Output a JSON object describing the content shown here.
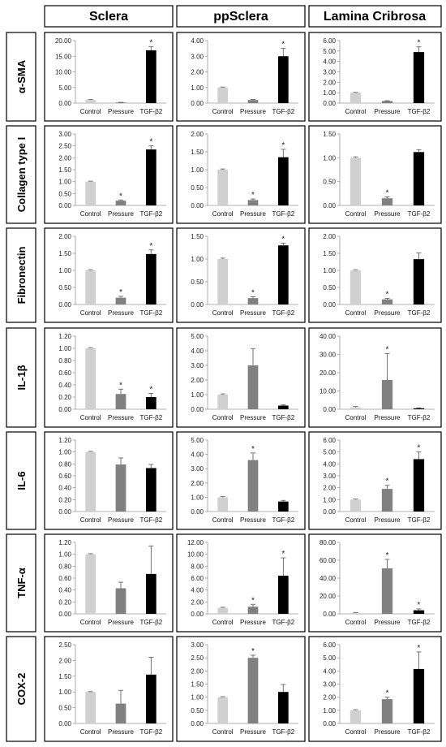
{
  "figure": {
    "columns": [
      "Sclera",
      "ppSclera",
      "Lamina Cribrosa"
    ],
    "rows": [
      "α-SMA",
      "Collagen type I",
      "Fibronectin",
      "IL-1β",
      "IL-6",
      "TNF-α",
      "COX-2"
    ],
    "categories": [
      "Control",
      "Pressure",
      "TGF-β2"
    ],
    "bar_colors": [
      "#d0d0d0",
      "#808080",
      "#000000"
    ],
    "significance_marker": "*"
  },
  "chart_data": [
    {
      "type": "bar",
      "row": "α-SMA",
      "column": "Sclera",
      "categories": [
        "Control",
        "Pressure",
        "TGF-β2"
      ],
      "values": [
        1.0,
        0.2,
        16.9
      ],
      "errors": [
        0.15,
        0.05,
        1.2
      ],
      "significant": [
        false,
        false,
        true
      ],
      "yticks": [
        "0.00",
        "5.00",
        "10.00",
        "15.00",
        "20.00"
      ],
      "ylim": [
        0,
        20
      ]
    },
    {
      "type": "bar",
      "row": "α-SMA",
      "column": "ppSclera",
      "categories": [
        "Control",
        "Pressure",
        "TGF-β2"
      ],
      "values": [
        1.0,
        0.2,
        3.0
      ],
      "errors": [
        0.03,
        0.03,
        0.5
      ],
      "significant": [
        false,
        false,
        true
      ],
      "yticks": [
        "0.00",
        "1.00",
        "2.00",
        "3.00",
        "4.00"
      ],
      "ylim": [
        0,
        4
      ]
    },
    {
      "type": "bar",
      "row": "α-SMA",
      "column": "Lamina Cribrosa",
      "categories": [
        "Control",
        "Pressure",
        "TGF-β2"
      ],
      "values": [
        1.0,
        0.2,
        4.9
      ],
      "errors": [
        0.03,
        0.03,
        0.5
      ],
      "significant": [
        false,
        false,
        true
      ],
      "yticks": [
        "0.00",
        "1.00",
        "2.00",
        "3.00",
        "4.00",
        "5.00",
        "6.00"
      ],
      "ylim": [
        0,
        6
      ]
    },
    {
      "type": "bar",
      "row": "Collagen type I",
      "column": "Sclera",
      "categories": [
        "Control",
        "Pressure",
        "TGF-β2"
      ],
      "values": [
        1.0,
        0.2,
        2.35
      ],
      "errors": [
        0.02,
        0.03,
        0.15
      ],
      "significant": [
        false,
        true,
        true
      ],
      "yticks": [
        "0.00",
        "0.50",
        "1.00",
        "1.50",
        "2.00",
        "2.50",
        "3.00"
      ],
      "ylim": [
        0,
        3
      ]
    },
    {
      "type": "bar",
      "row": "Collagen type I",
      "column": "ppSclera",
      "categories": [
        "Control",
        "Pressure",
        "TGF-β2"
      ],
      "values": [
        1.0,
        0.15,
        1.35
      ],
      "errors": [
        0.02,
        0.03,
        0.22
      ],
      "significant": [
        false,
        true,
        true
      ],
      "yticks": [
        "0.00",
        "0.50",
        "1.00",
        "1.50",
        "2.00"
      ],
      "ylim": [
        0,
        2
      ]
    },
    {
      "type": "bar",
      "row": "Collagen type I",
      "column": "Lamina Cribrosa",
      "categories": [
        "Control",
        "Pressure",
        "TGF-β2"
      ],
      "values": [
        1.0,
        0.15,
        1.12
      ],
      "errors": [
        0.02,
        0.03,
        0.05
      ],
      "significant": [
        false,
        true,
        false
      ],
      "yticks": [
        "0.00",
        "0.50",
        "1.00",
        "1.50"
      ],
      "ylim": [
        0,
        1.5
      ]
    },
    {
      "type": "bar",
      "row": "Fibronectin",
      "column": "Sclera",
      "categories": [
        "Control",
        "Pressure",
        "TGF-β2"
      ],
      "values": [
        1.0,
        0.2,
        1.48
      ],
      "errors": [
        0.02,
        0.04,
        0.12
      ],
      "significant": [
        false,
        true,
        true
      ],
      "yticks": [
        "0.00",
        "0.50",
        "1.00",
        "1.50",
        "2.00"
      ],
      "ylim": [
        0,
        2
      ]
    },
    {
      "type": "bar",
      "row": "Fibronectin",
      "column": "ppSclera",
      "categories": [
        "Control",
        "Pressure",
        "TGF-β2"
      ],
      "values": [
        1.0,
        0.14,
        1.3
      ],
      "errors": [
        0.02,
        0.03,
        0.05
      ],
      "significant": [
        false,
        true,
        true
      ],
      "yticks": [
        "0.00",
        "0.50",
        "1.00",
        "1.50"
      ],
      "ylim": [
        0,
        1.5
      ]
    },
    {
      "type": "bar",
      "row": "Fibronectin",
      "column": "Lamina Cribrosa",
      "categories": [
        "Control",
        "Pressure",
        "TGF-β2"
      ],
      "values": [
        1.0,
        0.15,
        1.33
      ],
      "errors": [
        0.02,
        0.03,
        0.18
      ],
      "significant": [
        false,
        true,
        false
      ],
      "yticks": [
        "0.00",
        "0.50",
        "1.00",
        "1.50",
        "2.00"
      ],
      "ylim": [
        0,
        2
      ]
    },
    {
      "type": "bar",
      "row": "IL-1β",
      "column": "Sclera",
      "categories": [
        "Control",
        "Pressure",
        "TGF-β2"
      ],
      "values": [
        1.0,
        0.25,
        0.2
      ],
      "errors": [
        0.01,
        0.08,
        0.06
      ],
      "significant": [
        false,
        true,
        true
      ],
      "yticks": [
        "0.00",
        "0.20",
        "0.40",
        "0.60",
        "0.80",
        "1.00",
        "1.20"
      ],
      "ylim": [
        0,
        1.2
      ]
    },
    {
      "type": "bar",
      "row": "IL-1β",
      "column": "ppSclera",
      "categories": [
        "Control",
        "Pressure",
        "TGF-β2"
      ],
      "values": [
        1.0,
        3.0,
        0.25
      ],
      "errors": [
        0.05,
        1.15,
        0.05
      ],
      "significant": [
        false,
        false,
        false
      ],
      "yticks": [
        "0.00",
        "1.00",
        "2.00",
        "3.00",
        "4.00",
        "5.00"
      ],
      "ylim": [
        0,
        5
      ]
    },
    {
      "type": "bar",
      "row": "IL-1β",
      "column": "Lamina Cribrosa",
      "categories": [
        "Control",
        "Pressure",
        "TGF-β2"
      ],
      "values": [
        1.0,
        16.0,
        0.5
      ],
      "errors": [
        0.5,
        14.5,
        0.3
      ],
      "significant": [
        false,
        true,
        false
      ],
      "yticks": [
        "0.00",
        "10.00",
        "20.00",
        "30.00",
        "40.00"
      ],
      "ylim": [
        0,
        40
      ]
    },
    {
      "type": "bar",
      "row": "IL-6",
      "column": "Sclera",
      "categories": [
        "Control",
        "Pressure",
        "TGF-β2"
      ],
      "values": [
        1.0,
        0.79,
        0.73
      ],
      "errors": [
        0.01,
        0.11,
        0.06
      ],
      "significant": [
        false,
        false,
        false
      ],
      "yticks": [
        "0.00",
        "0.20",
        "0.40",
        "0.60",
        "0.80",
        "1.00",
        "1.20"
      ],
      "ylim": [
        0,
        1.2
      ]
    },
    {
      "type": "bar",
      "row": "IL-6",
      "column": "ppSclera",
      "categories": [
        "Control",
        "Pressure",
        "TGF-β2"
      ],
      "values": [
        1.0,
        3.6,
        0.7
      ],
      "errors": [
        0.05,
        0.5,
        0.08
      ],
      "significant": [
        false,
        true,
        false
      ],
      "yticks": [
        "0.00",
        "1.00",
        "2.00",
        "3.00",
        "4.00",
        "5.00"
      ],
      "ylim": [
        0,
        5
      ]
    },
    {
      "type": "bar",
      "row": "IL-6",
      "column": "Lamina Cribrosa",
      "categories": [
        "Control",
        "Pressure",
        "TGF-β2"
      ],
      "values": [
        1.0,
        1.9,
        4.4
      ],
      "errors": [
        0.05,
        0.3,
        0.6
      ],
      "significant": [
        false,
        true,
        true
      ],
      "yticks": [
        "0.00",
        "1.00",
        "2.00",
        "3.00",
        "4.00",
        "5.00",
        "6.00"
      ],
      "ylim": [
        0,
        6
      ]
    },
    {
      "type": "bar",
      "row": "TNF-α",
      "column": "Sclera",
      "categories": [
        "Control",
        "Pressure",
        "TGF-β2"
      ],
      "values": [
        1.0,
        0.43,
        0.67
      ],
      "errors": [
        0.01,
        0.1,
        0.47
      ],
      "significant": [
        false,
        false,
        false
      ],
      "yticks": [
        "0.00",
        "0.20",
        "0.40",
        "0.60",
        "0.80",
        "1.00",
        "1.20"
      ],
      "ylim": [
        0,
        1.2
      ]
    },
    {
      "type": "bar",
      "row": "TNF-α",
      "column": "ppSclera",
      "categories": [
        "Control",
        "Pressure",
        "TGF-β2"
      ],
      "values": [
        1.0,
        1.2,
        6.4
      ],
      "errors": [
        0.1,
        0.4,
        3.0
      ],
      "significant": [
        false,
        true,
        true
      ],
      "yticks": [
        "0.00",
        "2.00",
        "4.00",
        "6.00",
        "8.00",
        "10.00",
        "12.00"
      ],
      "ylim": [
        0,
        12
      ]
    },
    {
      "type": "bar",
      "row": "TNF-α",
      "column": "Lamina Cribrosa",
      "categories": [
        "Control",
        "Pressure",
        "TGF-β2"
      ],
      "values": [
        1.0,
        51.0,
        4.0
      ],
      "errors": [
        0.5,
        10.0,
        1.5
      ],
      "significant": [
        false,
        true,
        true
      ],
      "yticks": [
        "0.00",
        "20.00",
        "40.00",
        "60.00",
        "80.00"
      ],
      "ylim": [
        0,
        80
      ]
    },
    {
      "type": "bar",
      "row": "COX-2",
      "column": "Sclera",
      "categories": [
        "Control",
        "Pressure",
        "TGF-β2"
      ],
      "values": [
        1.0,
        0.63,
        1.55
      ],
      "errors": [
        0.01,
        0.42,
        0.55
      ],
      "significant": [
        false,
        false,
        false
      ],
      "yticks": [
        "0.00",
        "0.50",
        "1.00",
        "1.50",
        "2.00",
        "2.50"
      ],
      "ylim": [
        0,
        2.5
      ]
    },
    {
      "type": "bar",
      "row": "COX-2",
      "column": "ppSclera",
      "categories": [
        "Control",
        "Pressure",
        "TGF-β2"
      ],
      "values": [
        1.0,
        2.5,
        1.2
      ],
      "errors": [
        0.02,
        0.1,
        0.28
      ],
      "significant": [
        false,
        true,
        false
      ],
      "yticks": [
        "0.00",
        "0.50",
        "1.00",
        "1.50",
        "2.00",
        "2.50",
        "3.00"
      ],
      "ylim": [
        0,
        3
      ]
    },
    {
      "type": "bar",
      "row": "COX-2",
      "column": "Lamina Cribrosa",
      "categories": [
        "Control",
        "Pressure",
        "TGF-β2"
      ],
      "values": [
        1.0,
        1.85,
        4.15
      ],
      "errors": [
        0.05,
        0.15,
        1.3
      ],
      "significant": [
        false,
        true,
        true
      ],
      "yticks": [
        "0.00",
        "1.00",
        "2.00",
        "3.00",
        "4.00",
        "5.00",
        "6.00"
      ],
      "ylim": [
        0,
        6
      ]
    }
  ]
}
